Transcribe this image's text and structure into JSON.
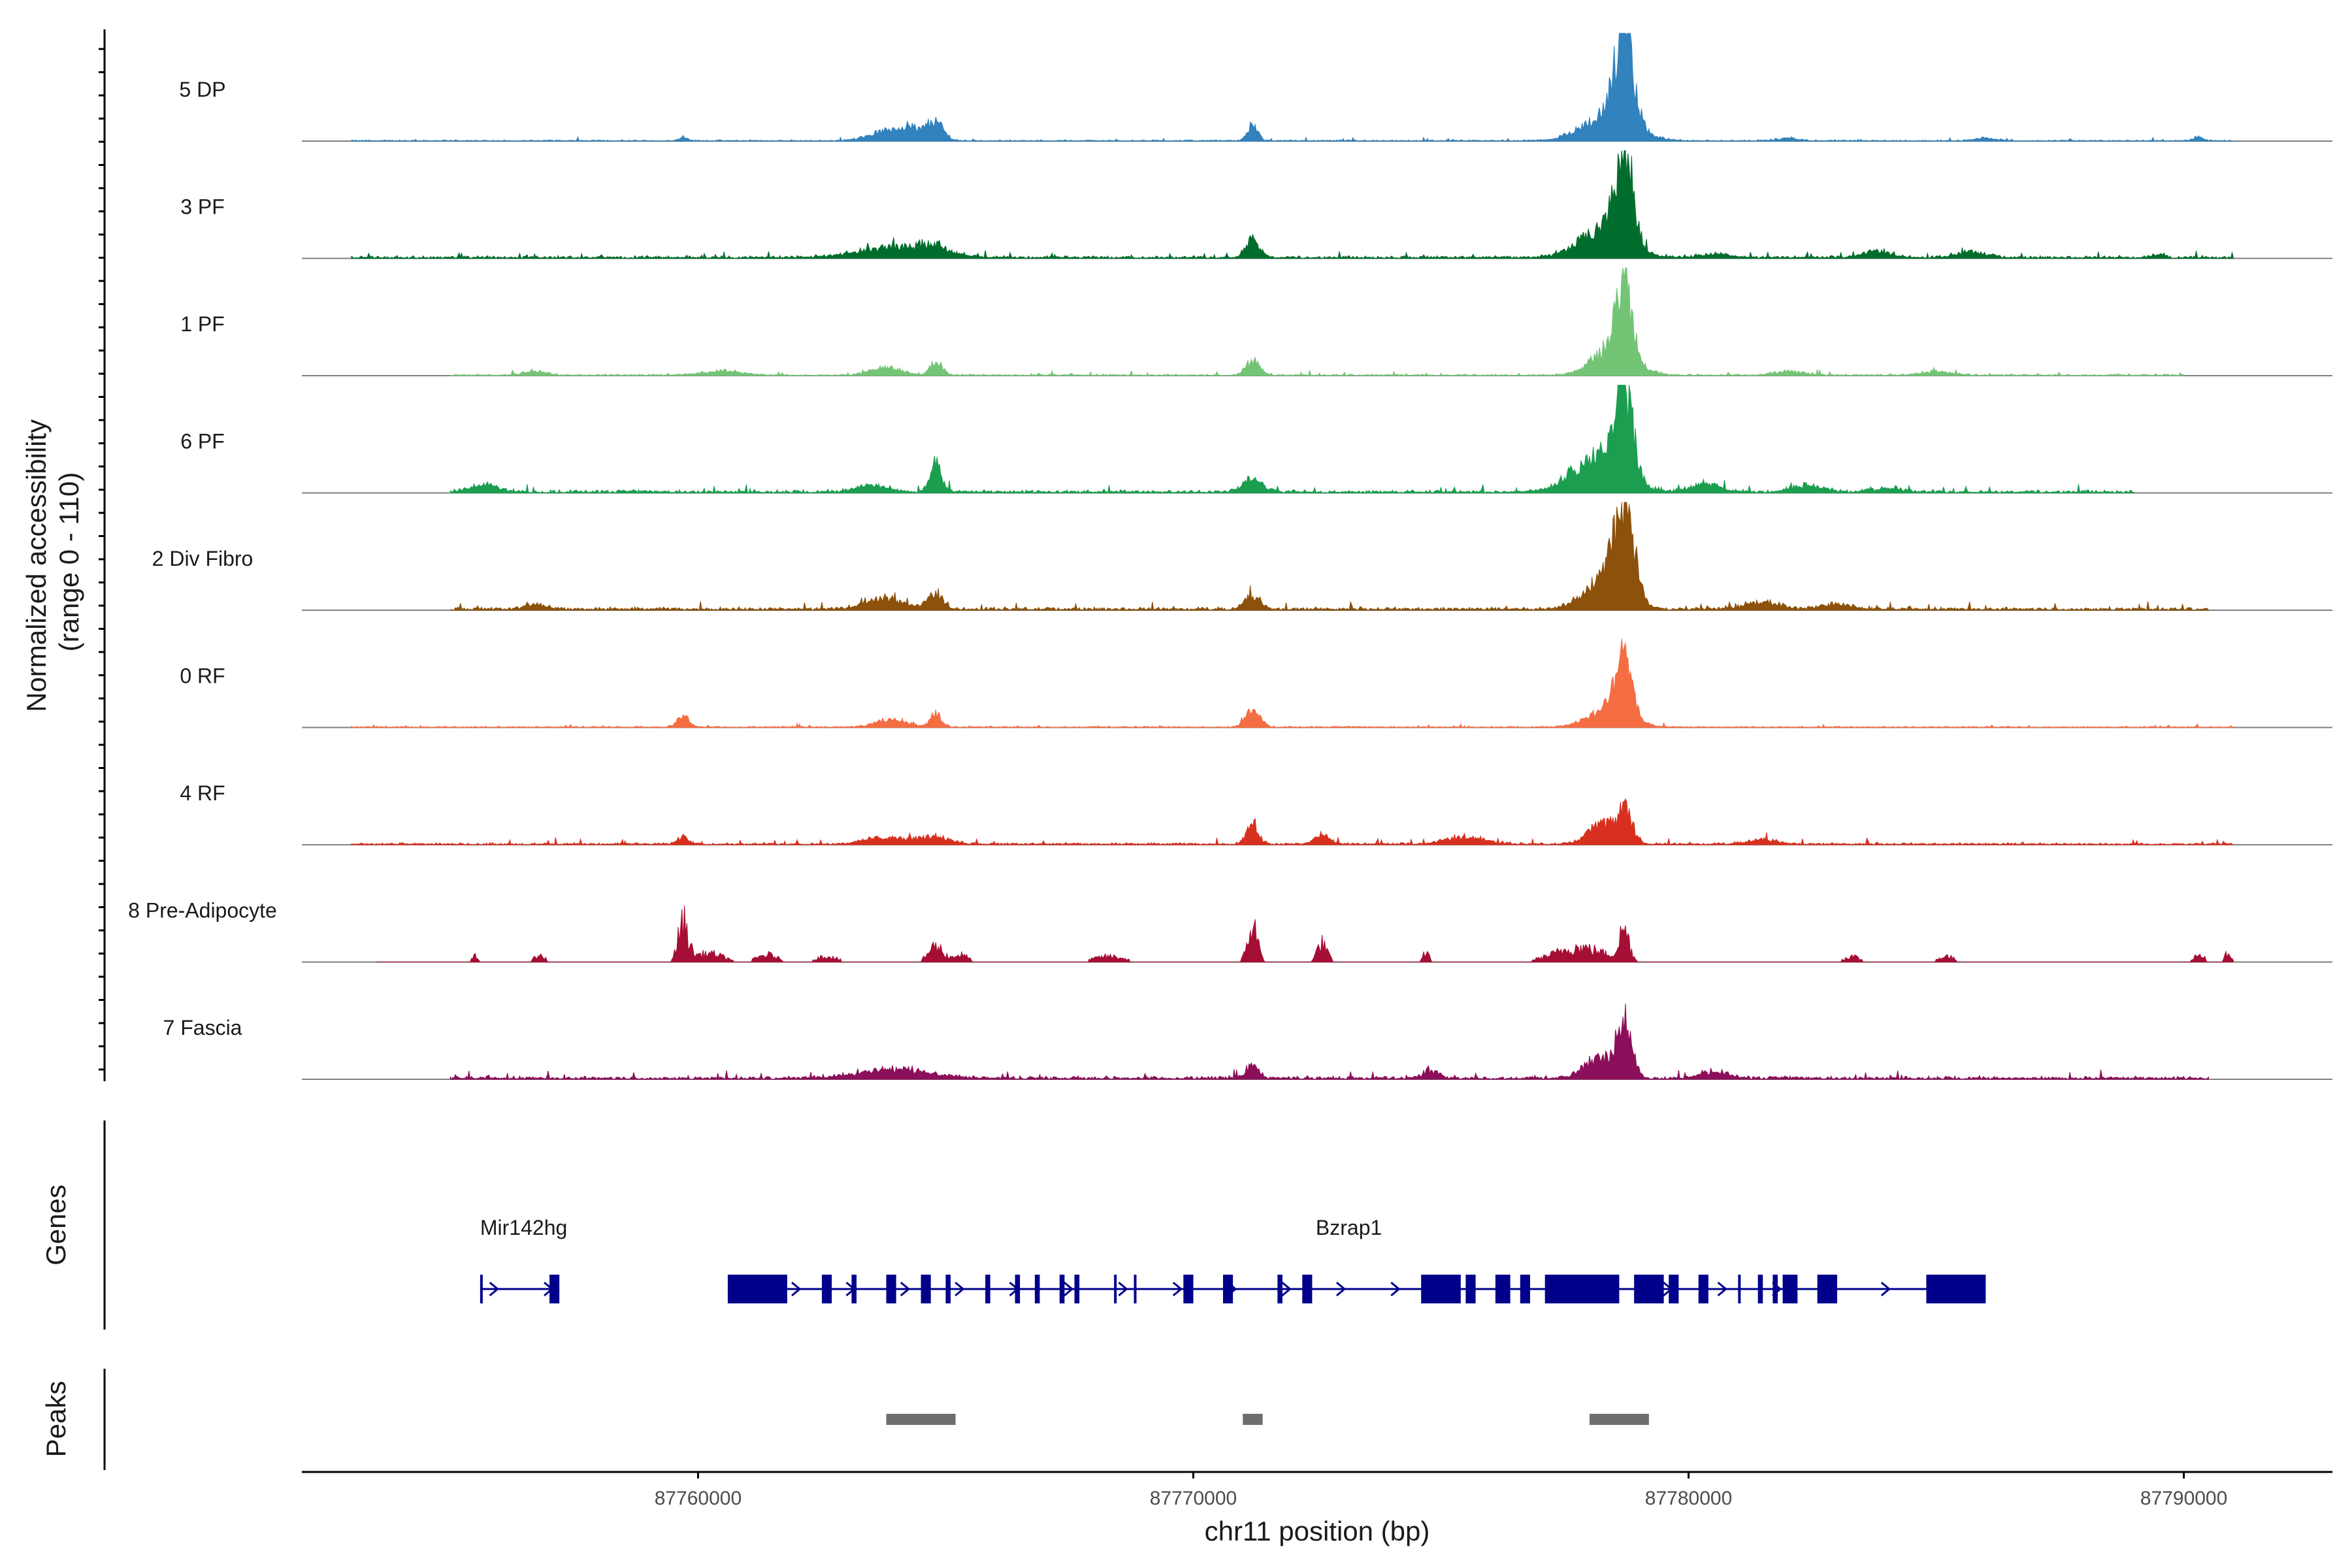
{
  "chart_data": {
    "type": "area",
    "title": "",
    "ylabel": "Normalized accessibility\n(range 0 - 110)",
    "ylim": [
      0,
      110
    ],
    "xlabel": "chr11 position (bp)",
    "chromosome": "chr11",
    "xlim": [
      87752000,
      87793000
    ],
    "x_ticks": [
      87760000,
      87770000,
      87780000,
      87790000
    ],
    "x_tick_labels": [
      "87760000",
      "87770000",
      "87780000",
      "87790000"
    ],
    "tracks": [
      {
        "name": "5 DP",
        "color": "#3182BD",
        "start": 87753000,
        "end": 87791000,
        "baseline": 1.2,
        "noise": 1.0,
        "sparse": false,
        "peaks": [
          [
            87759700,
            4,
            80
          ],
          [
            87763800,
            10,
            350
          ],
          [
            87764300,
            12,
            250
          ],
          [
            87764800,
            20,
            160
          ],
          [
            87771200,
            18,
            100
          ],
          [
            87778400,
            30,
            500
          ],
          [
            87778700,
            98,
            180
          ],
          [
            87782000,
            3,
            200
          ],
          [
            87786000,
            3,
            200
          ],
          [
            87790300,
            4,
            100
          ]
        ]
      },
      {
        "name": "3 PF",
        "color": "#006D2C",
        "start": 87753000,
        "end": 87791000,
        "baseline": 2.5,
        "noise": 2.0,
        "sparse": false,
        "peaks": [
          [
            87764000,
            12,
            700
          ],
          [
            87764800,
            8,
            300
          ],
          [
            87771200,
            20,
            140
          ],
          [
            87778300,
            30,
            500
          ],
          [
            87778700,
            100,
            180
          ],
          [
            87780500,
            4,
            300
          ],
          [
            87783800,
            7,
            300
          ],
          [
            87785700,
            6,
            300
          ],
          [
            87789500,
            4,
            100
          ]
        ]
      },
      {
        "name": "1 PF",
        "color": "#74C476",
        "start": 87755000,
        "end": 87790000,
        "baseline": 1.5,
        "noise": 1.5,
        "sparse": false,
        "peaks": [
          [
            87756700,
            5,
            200
          ],
          [
            87760500,
            5,
            400
          ],
          [
            87763800,
            8,
            300
          ],
          [
            87764800,
            15,
            120
          ],
          [
            87771200,
            16,
            140
          ],
          [
            87778500,
            32,
            400
          ],
          [
            87778700,
            82,
            150
          ],
          [
            87782000,
            4,
            300
          ],
          [
            87785000,
            4,
            300
          ]
        ]
      },
      {
        "name": "6 PF",
        "color": "#1B9E50",
        "start": 87755000,
        "end": 87789000,
        "baseline": 3.0,
        "noise": 2.5,
        "sparse": false,
        "peaks": [
          [
            87755700,
            8,
            300
          ],
          [
            87764800,
            30,
            120
          ],
          [
            87763500,
            8,
            300
          ],
          [
            87771200,
            14,
            200
          ],
          [
            87778200,
            42,
            500
          ],
          [
            87778700,
            100,
            170
          ],
          [
            87780300,
            9,
            300
          ],
          [
            87782400,
            7,
            300
          ],
          [
            87784000,
            5,
            300
          ]
        ]
      },
      {
        "name": "2 Div Fibro",
        "color": "#8C510A",
        "start": 87755000,
        "end": 87790500,
        "baseline": 3.0,
        "noise": 2.5,
        "sparse": false,
        "peaks": [
          [
            87756700,
            5,
            200
          ],
          [
            87763800,
            11,
            400
          ],
          [
            87764800,
            17,
            150
          ],
          [
            87771200,
            15,
            160
          ],
          [
            87778700,
            100,
            200
          ],
          [
            87778300,
            35,
            400
          ],
          [
            87781500,
            9,
            300
          ],
          [
            87783000,
            6,
            300
          ]
        ]
      },
      {
        "name": "0 RF",
        "color": "#F46D43",
        "start": 87753000,
        "end": 87791000,
        "baseline": 1.2,
        "noise": 1.0,
        "sparse": false,
        "peaks": [
          [
            87759700,
            12,
            120
          ],
          [
            87763900,
            9,
            300
          ],
          [
            87764800,
            15,
            110
          ],
          [
            87771200,
            20,
            140
          ],
          [
            87778400,
            22,
            400
          ],
          [
            87778700,
            83,
            150
          ]
        ]
      },
      {
        "name": "4 RF",
        "color": "#D7301F",
        "start": 87753000,
        "end": 87791000,
        "baseline": 2.0,
        "noise": 2.0,
        "sparse": false,
        "peaks": [
          [
            87759700,
            10,
            100
          ],
          [
            87763800,
            8,
            400
          ],
          [
            87764800,
            8,
            300
          ],
          [
            87771200,
            22,
            120
          ],
          [
            87772600,
            10,
            150
          ],
          [
            87775500,
            8,
            400
          ],
          [
            87778200,
            22,
            250
          ],
          [
            87778700,
            38,
            160
          ],
          [
            87781500,
            5,
            300
          ]
        ]
      },
      {
        "name": "8 Pre-Adipocyte",
        "color": "#A50F35",
        "start": 87753500,
        "end": 87791000,
        "baseline": 0,
        "noise": 0,
        "sparse": true,
        "peaks": [
          [
            87755500,
            8,
            60
          ],
          [
            87756800,
            8,
            120
          ],
          [
            87759700,
            52,
            100
          ],
          [
            87760200,
            12,
            300
          ],
          [
            87761400,
            10,
            200
          ],
          [
            87762600,
            8,
            200
          ],
          [
            87764800,
            22,
            150
          ],
          [
            87765300,
            10,
            150
          ],
          [
            87768300,
            8,
            300
          ],
          [
            87771200,
            50,
            100
          ],
          [
            87772600,
            26,
            100
          ],
          [
            87774700,
            14,
            60
          ],
          [
            87777800,
            20,
            500
          ],
          [
            87778700,
            42,
            100
          ],
          [
            87783300,
            8,
            150
          ],
          [
            87785200,
            8,
            150
          ],
          [
            87790300,
            12,
            100
          ],
          [
            87790900,
            14,
            60
          ]
        ]
      },
      {
        "name": "7 Fascia",
        "color": "#8B0F5A",
        "start": 87755000,
        "end": 87790500,
        "baseline": 3.0,
        "noise": 2.5,
        "sparse": false,
        "peaks": [
          [
            87764000,
            10,
            700
          ],
          [
            87771200,
            14,
            120
          ],
          [
            87774800,
            9,
            150
          ],
          [
            87778200,
            22,
            300
          ],
          [
            87778700,
            62,
            150
          ],
          [
            87780500,
            7,
            300
          ]
        ]
      }
    ],
    "genes": [
      {
        "name": "Mir142hg",
        "start": 87755600,
        "end": 87757200,
        "exons": [
          [
            87755600,
            87755650
          ],
          [
            87757000,
            87757200
          ]
        ]
      },
      {
        "name": "Bzrap1",
        "start": 87760600,
        "end": 87786000,
        "exons": [
          [
            87760600,
            87761800
          ],
          [
            87762500,
            87762700
          ],
          [
            87763100,
            87763200
          ],
          [
            87763800,
            87764000
          ],
          [
            87764500,
            87764700
          ],
          [
            87765000,
            87765100
          ],
          [
            87765800,
            87765900
          ],
          [
            87766400,
            87766500
          ],
          [
            87766800,
            87766900
          ],
          [
            87767300,
            87767400
          ],
          [
            87767600,
            87767700
          ],
          [
            87768400,
            87768450
          ],
          [
            87768800,
            87768850
          ],
          [
            87769800,
            87770000
          ],
          [
            87770600,
            87770800
          ],
          [
            87771700,
            87771800
          ],
          [
            87772200,
            87772400
          ],
          [
            87774600,
            87775400
          ],
          [
            87775500,
            87775700
          ],
          [
            87776100,
            87776400
          ],
          [
            87776600,
            87776800
          ],
          [
            87777100,
            87778600
          ],
          [
            87778900,
            87779500
          ],
          [
            87779600,
            87779800
          ],
          [
            87780200,
            87780400
          ],
          [
            87781000,
            87781050
          ],
          [
            87781400,
            87781500
          ],
          [
            87781700,
            87781800
          ],
          [
            87781900,
            87782200
          ],
          [
            87782600,
            87783000
          ],
          [
            87784800,
            87786000
          ]
        ]
      }
    ],
    "peaks_track": [
      [
        87763800,
        87765200
      ],
      [
        87771000,
        87771400
      ],
      [
        87778000,
        87779200
      ]
    ],
    "side_labels": {
      "genes": "Genes",
      "peaks": "Peaks"
    }
  }
}
